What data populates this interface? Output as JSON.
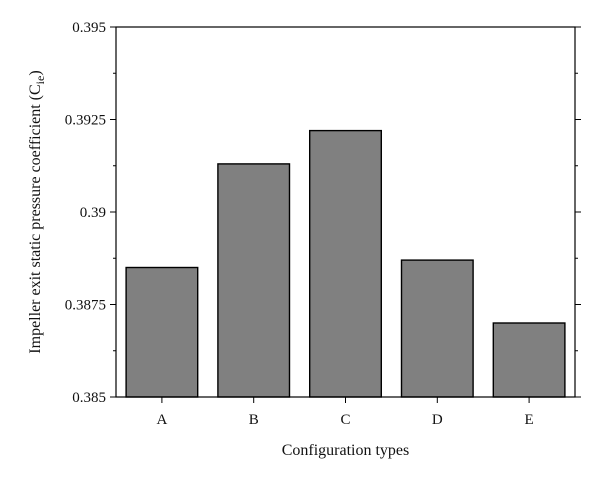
{
  "chart_data": {
    "type": "bar",
    "categories": [
      "A",
      "B",
      "C",
      "D",
      "E"
    ],
    "values": [
      0.3885,
      0.3913,
      0.3922,
      0.3887,
      0.387
    ],
    "title": "",
    "xlabel": "Configuration types",
    "ylabel": "Impeller exit static pressure coefficient (C",
    "ylabel_subscript": "ie",
    "ylabel_suffix": ")",
    "ylim": [
      0.385,
      0.395
    ],
    "yticks": [
      0.385,
      0.3875,
      0.39,
      0.3925,
      0.395
    ],
    "ytick_labels": [
      "0.385",
      "0.3875",
      "0.39",
      "0.3925",
      "0.395"
    ],
    "grid": false,
    "bar_color": "#808080"
  }
}
